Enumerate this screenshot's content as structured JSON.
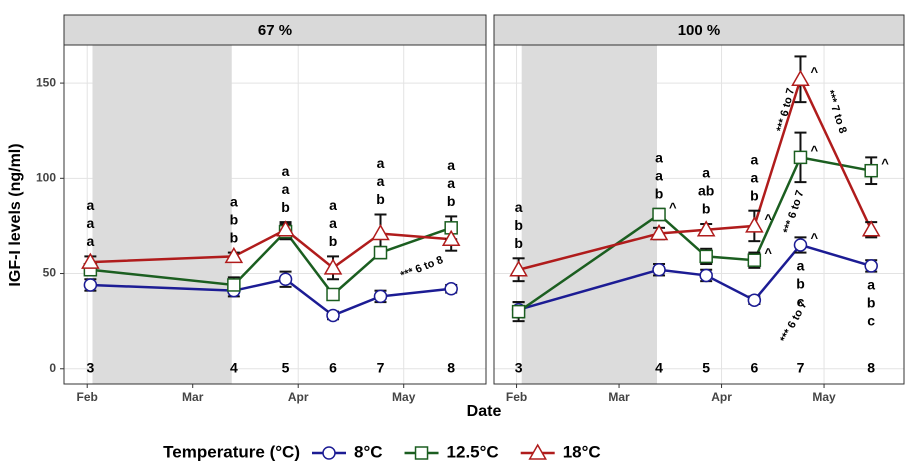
{
  "y_label": "IGF-I levels (ng/ml)",
  "x_label": "Date",
  "legend_title": "Temperature (°C)",
  "sample_labels": [
    3,
    4,
    5,
    6,
    7,
    8
  ],
  "chart_data": [
    {
      "type": "line",
      "title": "67 %",
      "x": [
        2.03,
        3.39,
        3.88,
        4.33,
        4.78,
        5.45
      ],
      "xlim": [
        1.78,
        5.78
      ],
      "xticks": [
        {
          "value": 2,
          "label": "Feb"
        },
        {
          "value": 3,
          "label": "Mar"
        },
        {
          "value": 4,
          "label": "Apr"
        },
        {
          "value": 5,
          "label": "May"
        }
      ],
      "ylim": [
        -8,
        170
      ],
      "yticks": [
        0,
        50,
        100,
        150
      ],
      "grid": true,
      "shade": [
        2.05,
        3.37
      ],
      "series": [
        {
          "name": "8°C",
          "color": "#1c1c94",
          "marker": "circle",
          "values": [
            44,
            41,
            47,
            28,
            38,
            42
          ],
          "errors": [
            3,
            3,
            4,
            2,
            3,
            2
          ]
        },
        {
          "name": "12.5°C",
          "color": "#1b5e20",
          "marker": "square",
          "values": [
            52,
            44,
            72,
            39,
            61,
            74
          ],
          "errors": [
            3,
            4,
            4,
            2,
            3,
            6
          ]
        },
        {
          "name": "18°C",
          "color": "#b01c1c",
          "marker": "triangle",
          "values": [
            56,
            59,
            73,
            53,
            71,
            68
          ],
          "errors": [
            3,
            2,
            4,
            6,
            10,
            6
          ]
        }
      ],
      "letters": [
        [
          "a",
          "a",
          "a"
        ],
        [
          "a",
          "b",
          "b"
        ],
        [
          "a",
          "a",
          "b"
        ],
        [
          "a",
          "a",
          "b"
        ],
        [
          "a",
          "a",
          "b"
        ],
        [
          "a",
          "a",
          "b"
        ]
      ],
      "annotations": [
        "*** 6 to 8"
      ]
    },
    {
      "type": "line",
      "title": "100 %",
      "x": [
        2.02,
        3.39,
        3.85,
        4.32,
        4.77,
        5.46
      ],
      "xlim": [
        1.78,
        5.78
      ],
      "xticks": [
        {
          "value": 2,
          "label": "Feb"
        },
        {
          "value": 3,
          "label": "Mar"
        },
        {
          "value": 4,
          "label": "Apr"
        },
        {
          "value": 5,
          "label": "May"
        }
      ],
      "ylim": [
        -8,
        170
      ],
      "yticks": [
        0,
        50,
        100,
        150
      ],
      "grid": true,
      "shade": [
        2.05,
        3.37
      ],
      "series": [
        {
          "name": "8°C",
          "color": "#1c1c94",
          "marker": "circle",
          "values": [
            31,
            52,
            49,
            36,
            65,
            54
          ],
          "errors": [
            4,
            3,
            3,
            2,
            4,
            3
          ],
          "point_labels": [
            null,
            null,
            null,
            null,
            "^",
            null
          ]
        },
        {
          "name": "12.5°C",
          "color": "#1b5e20",
          "marker": "square",
          "values": [
            30,
            81,
            59,
            57,
            111,
            104
          ],
          "errors": [
            5,
            3,
            4,
            4,
            13,
            7
          ],
          "point_labels": [
            null,
            "^",
            null,
            "^",
            "^",
            "^"
          ]
        },
        {
          "name": "18°C",
          "color": "#b01c1c",
          "marker": "triangle",
          "values": [
            52,
            71,
            73,
            75,
            152,
            73
          ],
          "errors": [
            6,
            3,
            3,
            8,
            12,
            4
          ],
          "point_labels": [
            null,
            null,
            null,
            "^",
            "^",
            null
          ]
        }
      ],
      "letters": [
        [
          "a",
          "b",
          "b"
        ],
        [
          "a",
          "a",
          "b"
        ],
        [
          "a",
          "ab",
          "b"
        ],
        [
          "a",
          "a",
          "b"
        ],
        [
          "a",
          "b",
          "c"
        ],
        [
          "a",
          "b",
          "c"
        ]
      ],
      "annotations": [
        "*** 6 to 7",
        "*** 7 to 8",
        "*** 6 to 7",
        "*** 6 to 7"
      ]
    }
  ]
}
